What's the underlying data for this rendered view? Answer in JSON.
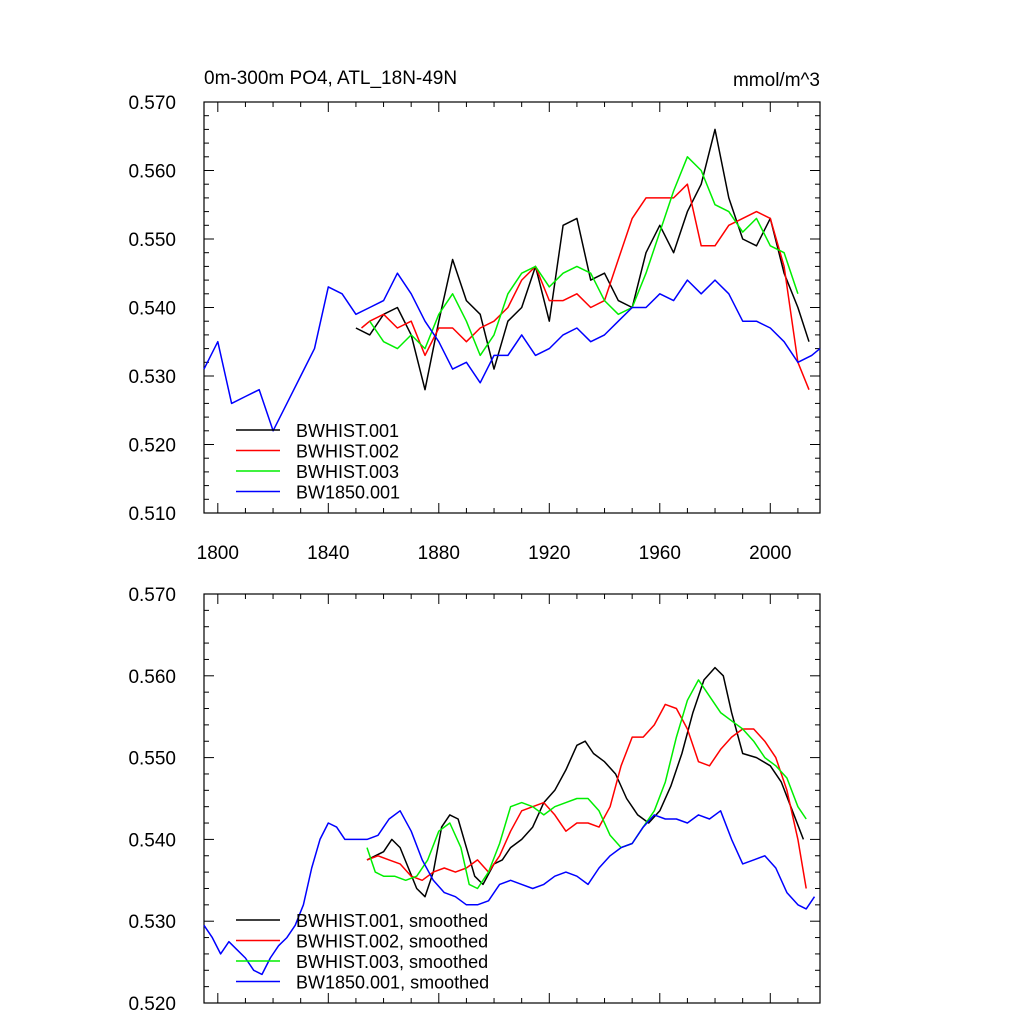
{
  "chart_data": [
    {
      "type": "line",
      "title": "0m-300m PO4, ATL_18N-49N",
      "units": "mmol/m^3",
      "xlim": [
        1795,
        2018
      ],
      "ylim": [
        0.51,
        0.57
      ],
      "x_ticks": [
        1800,
        1840,
        1880,
        1920,
        1960,
        2000
      ],
      "x_tick_labels": [
        "1800",
        "1840",
        "1880",
        "1920",
        "1960",
        "2000"
      ],
      "y_ticks": [
        0.51,
        0.52,
        0.53,
        0.54,
        0.55,
        0.56,
        0.57
      ],
      "y_tick_labels": [
        "0.510",
        "0.520",
        "0.530",
        "0.540",
        "0.550",
        "0.560",
        "0.570"
      ],
      "legend_position": "bottom-left",
      "series": [
        {
          "name": "BWHIST.001",
          "color": "#000000",
          "x": [
            1850,
            1855,
            1860,
            1865,
            1870,
            1875,
            1880,
            1885,
            1890,
            1895,
            1900,
            1905,
            1910,
            1915,
            1920,
            1925,
            1930,
            1935,
            1940,
            1945,
            1950,
            1955,
            1960,
            1965,
            1970,
            1975,
            1980,
            1985,
            1990,
            1995,
            2000,
            2005,
            2010,
            2014
          ],
          "y": [
            0.537,
            0.536,
            0.539,
            0.54,
            0.536,
            0.528,
            0.538,
            0.547,
            0.541,
            0.539,
            0.531,
            0.538,
            0.54,
            0.546,
            0.538,
            0.552,
            0.553,
            0.544,
            0.545,
            0.541,
            0.54,
            0.548,
            0.552,
            0.548,
            0.554,
            0.558,
            0.566,
            0.556,
            0.55,
            0.549,
            0.553,
            0.545,
            0.54,
            0.535
          ]
        },
        {
          "name": "BWHIST.002",
          "color": "#ff0000",
          "x": [
            1852,
            1855,
            1860,
            1865,
            1870,
            1875,
            1880,
            1885,
            1890,
            1895,
            1900,
            1905,
            1910,
            1915,
            1920,
            1925,
            1930,
            1935,
            1940,
            1945,
            1950,
            1955,
            1960,
            1965,
            1970,
            1975,
            1980,
            1985,
            1990,
            1995,
            2000,
            2005,
            2010,
            2014
          ],
          "y": [
            0.537,
            0.538,
            0.539,
            0.537,
            0.538,
            0.533,
            0.537,
            0.537,
            0.535,
            0.537,
            0.538,
            0.54,
            0.544,
            0.546,
            0.541,
            0.541,
            0.542,
            0.54,
            0.541,
            0.547,
            0.553,
            0.556,
            0.556,
            0.556,
            0.558,
            0.549,
            0.549,
            0.552,
            0.553,
            0.554,
            0.553,
            0.546,
            0.532,
            0.528
          ]
        },
        {
          "name": "BWHIST.003",
          "color": "#00ee00",
          "x": [
            1855,
            1860,
            1865,
            1870,
            1875,
            1880,
            1885,
            1890,
            1895,
            1900,
            1905,
            1910,
            1915,
            1920,
            1925,
            1930,
            1935,
            1940,
            1945,
            1950,
            1955,
            1960,
            1965,
            1970,
            1975,
            1980,
            1985,
            1990,
            1995,
            2000,
            2005,
            2010
          ],
          "y": [
            0.538,
            0.535,
            0.534,
            0.536,
            0.534,
            0.539,
            0.542,
            0.538,
            0.533,
            0.536,
            0.542,
            0.545,
            0.546,
            0.543,
            0.545,
            0.546,
            0.545,
            0.541,
            0.539,
            0.54,
            0.545,
            0.551,
            0.557,
            0.562,
            0.56,
            0.555,
            0.554,
            0.551,
            0.553,
            0.549,
            0.548,
            0.542
          ]
        },
        {
          "name": "BW1850.001",
          "color": "#0000ff",
          "x": [
            1795,
            1800,
            1805,
            1810,
            1815,
            1820,
            1825,
            1830,
            1835,
            1840,
            1845,
            1850,
            1855,
            1860,
            1865,
            1870,
            1875,
            1880,
            1885,
            1890,
            1895,
            1900,
            1905,
            1910,
            1915,
            1920,
            1925,
            1930,
            1935,
            1940,
            1945,
            1950,
            1955,
            1960,
            1965,
            1970,
            1975,
            1980,
            1985,
            1990,
            1995,
            2000,
            2005,
            2010,
            2015,
            2018
          ],
          "y": [
            0.531,
            0.535,
            0.526,
            0.527,
            0.528,
            0.522,
            0.526,
            0.53,
            0.534,
            0.543,
            0.542,
            0.539,
            0.54,
            0.541,
            0.545,
            0.542,
            0.538,
            0.535,
            0.531,
            0.532,
            0.529,
            0.533,
            0.533,
            0.536,
            0.533,
            0.534,
            0.536,
            0.537,
            0.535,
            0.536,
            0.538,
            0.54,
            0.54,
            0.542,
            0.541,
            0.544,
            0.542,
            0.544,
            0.542,
            0.538,
            0.538,
            0.537,
            0.535,
            0.532,
            0.533,
            0.534
          ]
        }
      ]
    },
    {
      "type": "line",
      "title": "",
      "xlim": [
        1795,
        2018
      ],
      "ylim": [
        0.52,
        0.57
      ],
      "y_ticks": [
        0.52,
        0.53,
        0.54,
        0.55,
        0.56,
        0.57
      ],
      "y_tick_labels": [
        "0.520",
        "0.530",
        "0.540",
        "0.550",
        "0.560",
        "0.570"
      ],
      "legend_position": "bottom-left",
      "series": [
        {
          "name": "BWHIST.001, smoothed",
          "color": "#000000",
          "x": [
            1854,
            1857,
            1860,
            1863,
            1866,
            1869,
            1872,
            1875,
            1878,
            1881,
            1884,
            1887,
            1890,
            1893,
            1896,
            1900,
            1903,
            1906,
            1910,
            1914,
            1918,
            1922,
            1926,
            1930,
            1933,
            1936,
            1940,
            1944,
            1948,
            1952,
            1956,
            1960,
            1964,
            1968,
            1972,
            1976,
            1980,
            1983,
            1986,
            1990,
            1995,
            2000,
            2004,
            2008,
            2012
          ],
          "y": [
            0.5375,
            0.538,
            0.5385,
            0.54,
            0.539,
            0.5365,
            0.534,
            0.533,
            0.536,
            0.5415,
            0.543,
            0.5425,
            0.539,
            0.5355,
            0.5345,
            0.537,
            0.5375,
            0.539,
            0.54,
            0.5415,
            0.5445,
            0.546,
            0.5485,
            0.5515,
            0.552,
            0.5505,
            0.5495,
            0.548,
            0.545,
            0.543,
            0.542,
            0.5435,
            0.5465,
            0.5505,
            0.5555,
            0.5595,
            0.561,
            0.56,
            0.5555,
            0.5505,
            0.55,
            0.549,
            0.547,
            0.5435,
            0.54
          ]
        },
        {
          "name": "BWHIST.002, smoothed",
          "color": "#ff0000",
          "x": [
            1854,
            1858,
            1862,
            1866,
            1870,
            1874,
            1878,
            1882,
            1886,
            1890,
            1894,
            1898,
            1902,
            1906,
            1910,
            1914,
            1918,
            1922,
            1926,
            1930,
            1934,
            1938,
            1942,
            1946,
            1950,
            1954,
            1958,
            1962,
            1966,
            1970,
            1974,
            1978,
            1982,
            1986,
            1990,
            1994,
            1998,
            2002,
            2006,
            2010,
            2013
          ],
          "y": [
            0.5375,
            0.538,
            0.5375,
            0.537,
            0.5355,
            0.535,
            0.536,
            0.5365,
            0.536,
            0.5365,
            0.5375,
            0.536,
            0.538,
            0.541,
            0.5435,
            0.544,
            0.5445,
            0.543,
            0.541,
            0.542,
            0.542,
            0.5415,
            0.544,
            0.549,
            0.5525,
            0.5525,
            0.554,
            0.5565,
            0.556,
            0.5535,
            0.5495,
            0.549,
            0.551,
            0.5525,
            0.5535,
            0.5535,
            0.552,
            0.55,
            0.546,
            0.54,
            0.534
          ]
        },
        {
          "name": "BWHIST.003, smoothed",
          "color": "#00ee00",
          "x": [
            1854,
            1857,
            1860,
            1864,
            1868,
            1872,
            1876,
            1880,
            1884,
            1888,
            1891,
            1894,
            1898,
            1902,
            1906,
            1910,
            1914,
            1918,
            1922,
            1926,
            1930,
            1934,
            1938,
            1942,
            1946,
            1950,
            1954,
            1958,
            1962,
            1966,
            1970,
            1974,
            1978,
            1982,
            1986,
            1990,
            1994,
            1998,
            2002,
            2006,
            2010,
            2013
          ],
          "y": [
            0.539,
            0.536,
            0.5355,
            0.5355,
            0.535,
            0.5355,
            0.5375,
            0.541,
            0.542,
            0.539,
            0.5345,
            0.534,
            0.536,
            0.5395,
            0.544,
            0.5445,
            0.544,
            0.543,
            0.544,
            0.5445,
            0.545,
            0.545,
            0.5435,
            0.5405,
            0.539,
            0.5395,
            0.5415,
            0.5435,
            0.547,
            0.5525,
            0.557,
            0.5595,
            0.5575,
            0.5555,
            0.5545,
            0.5535,
            0.552,
            0.55,
            0.549,
            0.5475,
            0.544,
            0.5425
          ]
        },
        {
          "name": "BW1850.001, smoothed",
          "color": "#0000ff",
          "x": [
            1795,
            1798,
            1801,
            1804,
            1807,
            1810,
            1813,
            1816,
            1819,
            1822,
            1825,
            1828,
            1831,
            1834,
            1837,
            1840,
            1843,
            1846,
            1850,
            1854,
            1858,
            1862,
            1866,
            1870,
            1874,
            1878,
            1882,
            1886,
            1890,
            1894,
            1898,
            1902,
            1906,
            1910,
            1914,
            1918,
            1922,
            1926,
            1930,
            1934,
            1938,
            1942,
            1946,
            1950,
            1954,
            1958,
            1962,
            1966,
            1970,
            1974,
            1978,
            1982,
            1986,
            1990,
            1994,
            1998,
            2002,
            2006,
            2010,
            2013,
            2016
          ],
          "y": [
            0.5295,
            0.528,
            0.526,
            0.5275,
            0.5265,
            0.5255,
            0.524,
            0.5235,
            0.5255,
            0.527,
            0.528,
            0.5295,
            0.532,
            0.5365,
            0.54,
            0.542,
            0.5415,
            0.54,
            0.54,
            0.54,
            0.5405,
            0.5425,
            0.5435,
            0.541,
            0.5375,
            0.535,
            0.5335,
            0.533,
            0.532,
            0.532,
            0.5325,
            0.5345,
            0.535,
            0.5345,
            0.534,
            0.5345,
            0.5355,
            0.536,
            0.5355,
            0.5345,
            0.5365,
            0.538,
            0.539,
            0.5395,
            0.5415,
            0.543,
            0.5425,
            0.5425,
            0.542,
            0.543,
            0.5425,
            0.5435,
            0.54,
            0.537,
            0.5375,
            0.538,
            0.5365,
            0.5335,
            0.532,
            0.5315,
            0.533
          ]
        }
      ]
    }
  ]
}
